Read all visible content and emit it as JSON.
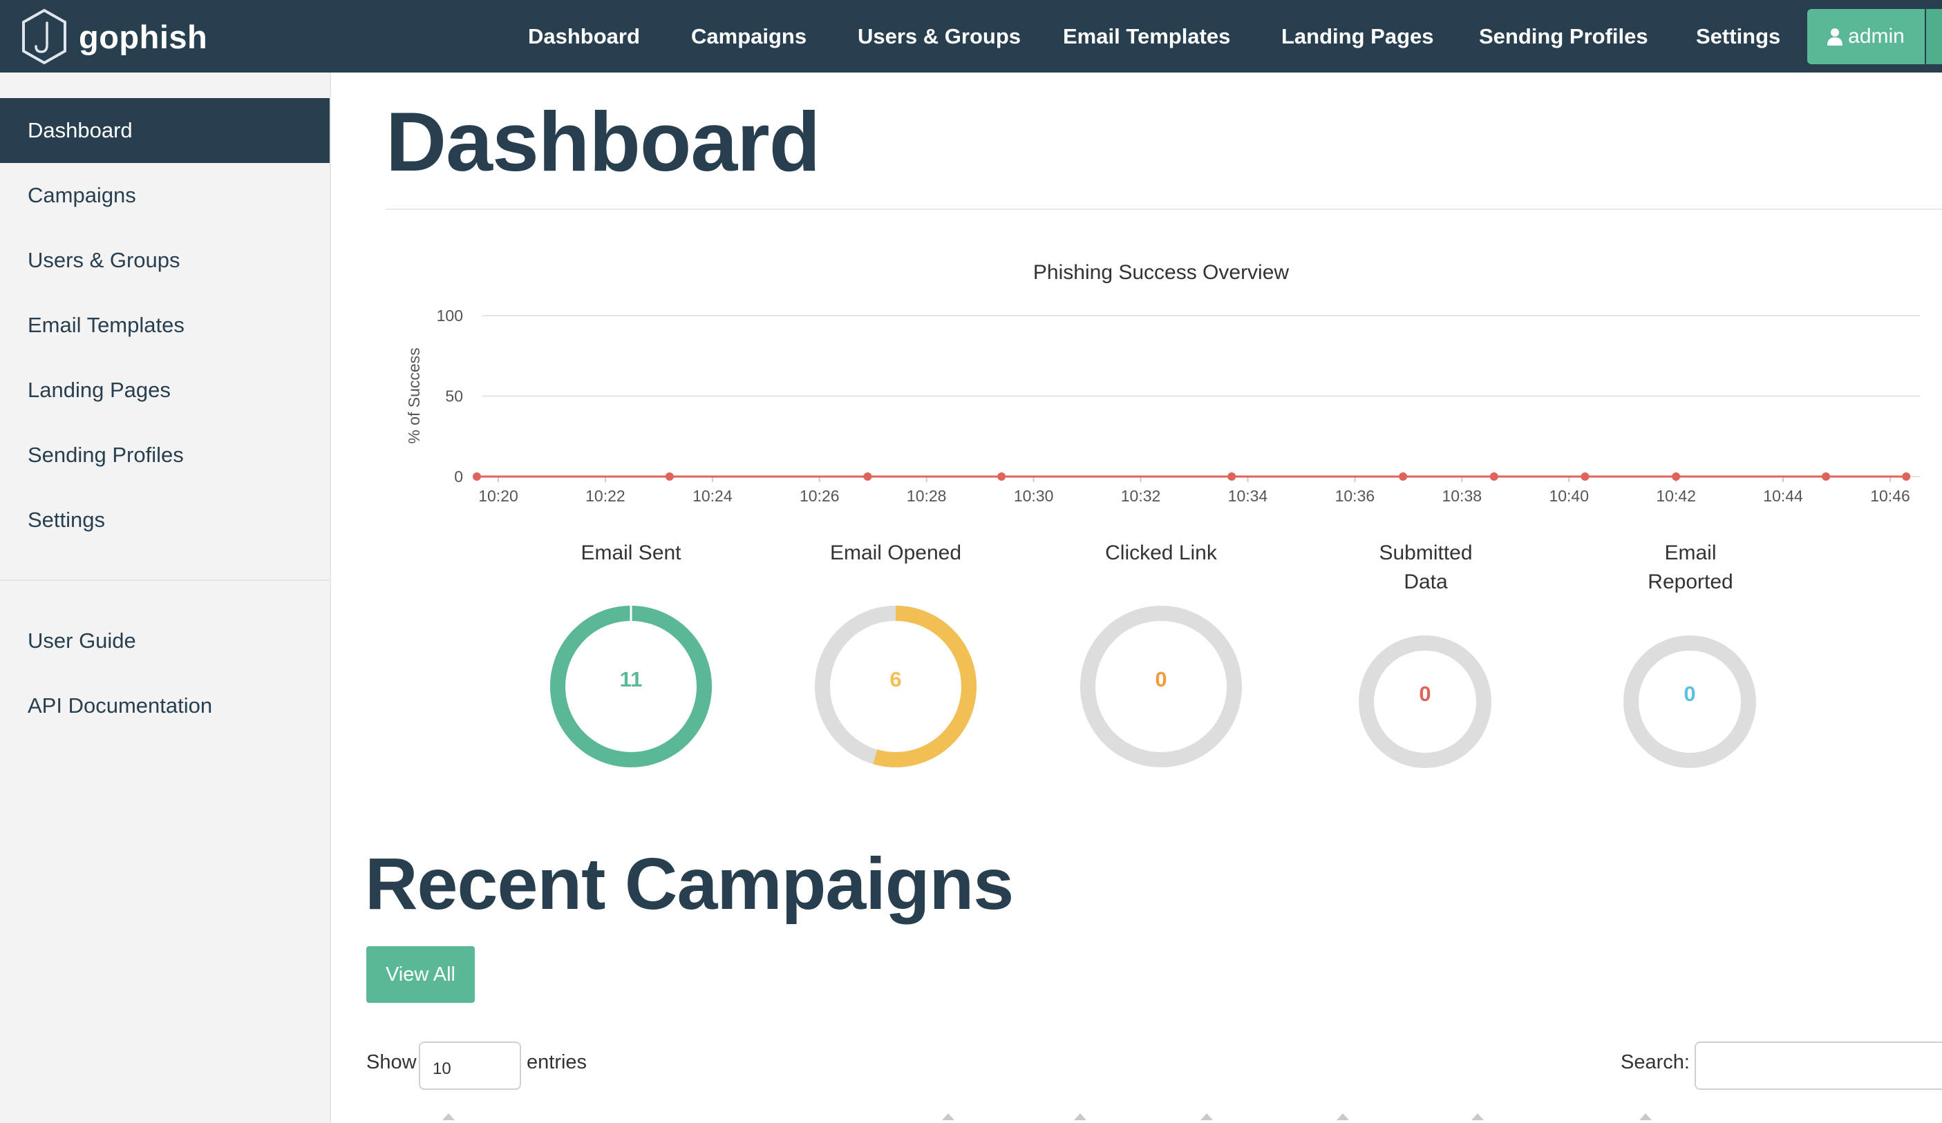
{
  "brand": {
    "name": "gophish"
  },
  "nav": {
    "items": [
      "Dashboard",
      "Campaigns",
      "Users & Groups",
      "Email Templates",
      "Landing Pages",
      "Sending Profiles",
      "Settings"
    ],
    "admin_label": "admin"
  },
  "sidebar": {
    "items": [
      "Dashboard",
      "Campaigns",
      "Users & Groups",
      "Email Templates",
      "Landing Pages",
      "Sending Profiles",
      "Settings"
    ],
    "active": "Dashboard",
    "links": [
      "User Guide",
      "API Documentation"
    ]
  },
  "page": {
    "title": "Dashboard"
  },
  "chart_data": {
    "type": "line",
    "title": "Phishing Success Overview",
    "ylabel": "% of Success",
    "xlabel": "",
    "ylim": [
      0,
      100
    ],
    "yticks": [
      "0",
      "50",
      "100"
    ],
    "xticks": [
      "10:20",
      "10:22",
      "10:24",
      "10:26",
      "10:28",
      "10:30",
      "10:32",
      "10:34",
      "10:36",
      "10:38",
      "10:40",
      "10:42",
      "10:44",
      "10:46"
    ],
    "x": [
      "10:19.6",
      "10:23.2",
      "10:26.9",
      "10:29.4",
      "10:33.7",
      "10:36.9",
      "10:38.6",
      "10:40.3",
      "10:42.0",
      "10:44.8",
      "10:46.3"
    ],
    "series": [
      {
        "values": [
          0,
          0,
          0,
          0,
          0,
          0,
          0,
          0,
          0,
          0,
          0
        ],
        "color": "#e0635b"
      }
    ],
    "grid": true,
    "legend": "none"
  },
  "stats": [
    {
      "label": "Email Sent",
      "value": "11",
      "fraction": 1.0,
      "color": "#5ab897"
    },
    {
      "label": "Email Opened",
      "value": "6",
      "fraction": 0.545,
      "color": "#f1bf54"
    },
    {
      "label": "Clicked Link",
      "value": "0",
      "fraction": 0,
      "color": "#f39c3c"
    },
    {
      "label": "Submitted Data",
      "value": "0",
      "fraction": 0,
      "color": "#e0635b"
    },
    {
      "label": "Email Reported",
      "value": "0",
      "fraction": 0,
      "color": "#5bc0de"
    }
  ],
  "campaigns": {
    "title": "Recent Campaigns",
    "view_all": "View All",
    "show_label": "Show",
    "entries_label": "entries",
    "page_length": "10",
    "search_label": "Search:"
  },
  "colors": {
    "navbar": "#283f50",
    "accent": "#5ab897",
    "sidebar_bg": "#f3f3f3"
  }
}
